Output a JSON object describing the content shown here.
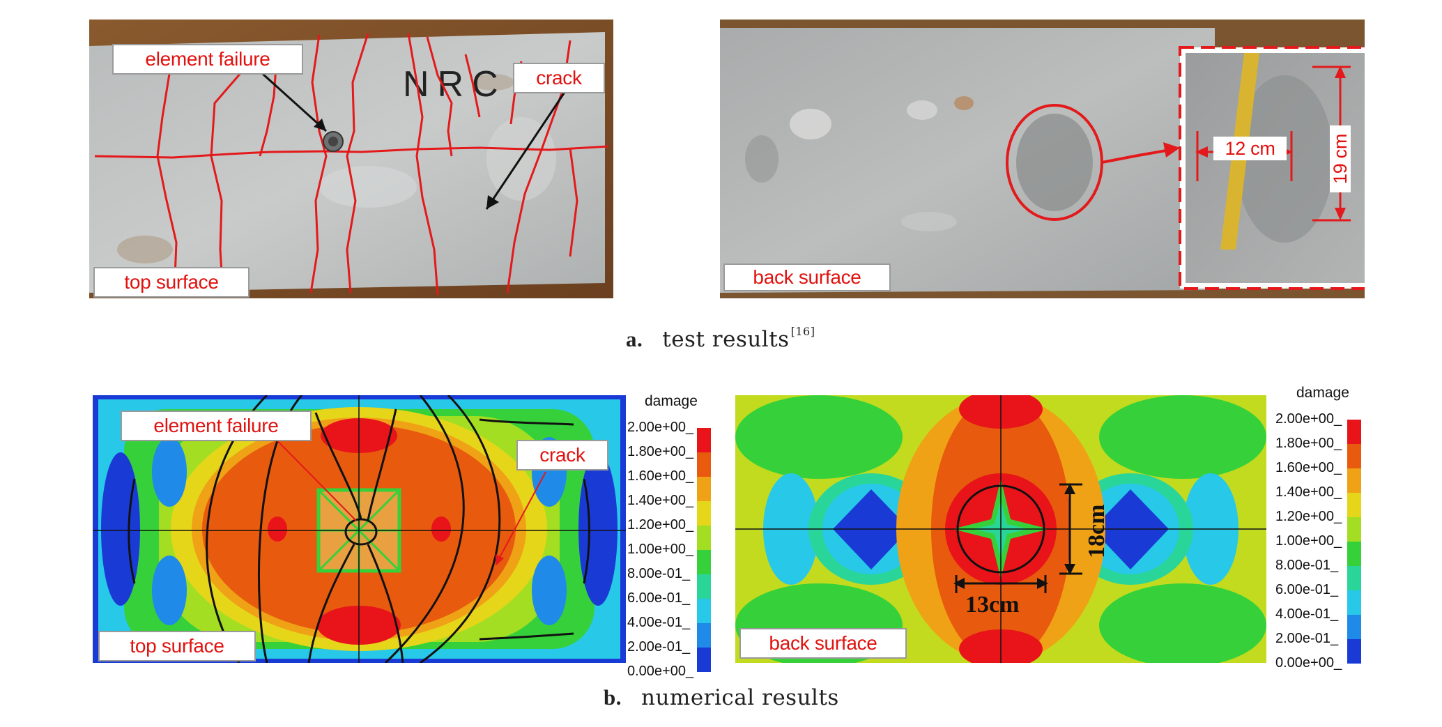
{
  "panel_a": {
    "top": {
      "label_element_failure": "element failure",
      "label_crack": "crack",
      "label_surface": "top surface",
      "slab_marking": "NRC"
    },
    "back": {
      "label_surface": "back surface",
      "dim_width": "12 cm",
      "dim_height": "19 cm"
    },
    "caption_letter": "a.",
    "caption_text": "test results",
    "caption_ref": "[16]"
  },
  "panel_b": {
    "top": {
      "label_element_failure": "element failure",
      "label_crack": "crack",
      "label_surface": "top surface"
    },
    "back": {
      "label_surface": "back surface",
      "dim_width": "13cm",
      "dim_height": "18cm"
    },
    "legend_title": "damage",
    "legend_ticks": [
      "2.00e+00",
      "1.80e+00",
      "1.60e+00",
      "1.40e+00",
      "1.20e+00",
      "1.00e+00",
      "8.00e-01",
      "6.00e-01",
      "4.00e-01",
      "2.00e-01",
      "0.00e+00"
    ],
    "legend_colors": [
      "#e8141a",
      "#e85a0d",
      "#f0a216",
      "#e6d61a",
      "#a4de22",
      "#36d13a",
      "#2ad59a",
      "#28c8e8",
      "#1f8ae8",
      "#1a3ad6"
    ],
    "caption_letter": "b.",
    "caption_text": "numerical results"
  }
}
